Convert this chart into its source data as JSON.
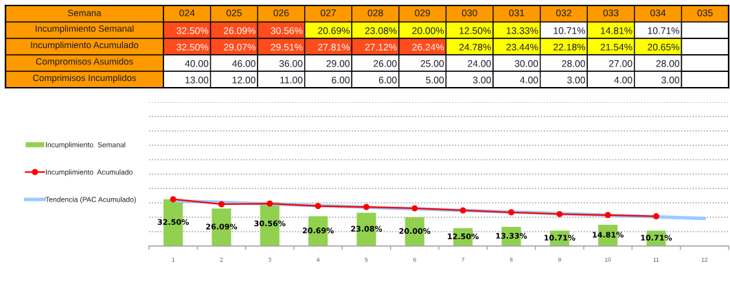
{
  "chart_data": [
    {
      "type": "heatmap",
      "xlabel": "Semana",
      "categories": [
        "024",
        "025",
        "026",
        "027",
        "028",
        "029",
        "030",
        "031",
        "032",
        "033",
        "034",
        "035"
      ],
      "y_categories": [
        "Incumplimiento Semanal",
        "Incumplimiento Acumulado",
        "Compromisos Asumidos",
        "Comprimisos Incumplidos"
      ],
      "cells": [
        [
          32.5,
          26.09,
          30.56,
          20.69,
          23.08,
          20.0,
          12.5,
          13.33,
          10.71,
          14.81,
          10.71,
          null
        ],
        [
          32.5,
          29.07,
          29.51,
          27.81,
          27.12,
          26.24,
          24.78,
          23.44,
          22.18,
          21.54,
          20.65,
          null
        ],
        [
          40,
          46,
          36,
          29,
          26,
          25,
          24,
          30,
          28,
          27,
          28,
          null
        ],
        [
          13,
          12,
          11,
          6,
          6,
          5,
          3,
          4,
          3,
          4,
          3,
          null
        ]
      ],
      "cell_labels": [
        [
          "32.50%",
          "26.09%",
          "30.56%",
          "20.69%",
          "23.08%",
          "20.00%",
          "12.50%",
          "13.33%",
          "10.71%",
          "14.81%",
          "10.71%",
          null
        ],
        [
          "32.50%",
          "29.07%",
          "29.51%",
          "27.81%",
          "27.12%",
          "26.24%",
          "24.78%",
          "23.44%",
          "22.18%",
          "21.54%",
          "20.65%",
          null
        ],
        [
          "40.00",
          "46.00",
          "36.00",
          "29.00",
          "26.00",
          "25.00",
          "24.00",
          "30.00",
          "28.00",
          "27.00",
          "28.00",
          null
        ],
        [
          "13.00",
          "12.00",
          "11.00",
          "6.00",
          "6.00",
          "5.00",
          "3.00",
          "4.00",
          "3.00",
          "4.00",
          "3.00",
          null
        ]
      ],
      "colors": [
        [
          "#ff4c1c",
          "#ff4c1c",
          "#ff4c1c",
          "#ffff00",
          "#ffff00",
          "#ffff00",
          "#ffff00",
          "#ffff00",
          "#ffffff",
          "#ffff00",
          "#ffffff",
          null
        ],
        [
          "#ff4c1c",
          "#ff4c1c",
          "#ff4c1c",
          "#ff4c1c",
          "#ff4c1c",
          "#ff4c1c",
          "#ffff00",
          "#ffff00",
          "#ffff00",
          "#ffff00",
          "#ffff00",
          null
        ],
        [
          "#ffffff",
          "#ffffff",
          "#ffffff",
          "#ffffff",
          "#ffffff",
          "#ffffff",
          "#ffffff",
          "#ffffff",
          "#ffffff",
          "#ffffff",
          "#ffffff",
          null
        ],
        [
          "#ffffff",
          "#ffffff",
          "#ffffff",
          "#ffffff",
          "#ffffff",
          "#ffffff",
          "#ffffff",
          "#ffffff",
          "#ffffff",
          "#ffffff",
          "#ffffff",
          null
        ]
      ]
    },
    {
      "type": "bar",
      "x": [
        1,
        2,
        3,
        4,
        5,
        6,
        7,
        8,
        9,
        10,
        11
      ],
      "xlim": [
        0.5,
        12.5
      ],
      "xticks": [
        {
          "value": 0.5,
          "label": null
        },
        1,
        {
          "value": 1.5,
          "label": null
        },
        2,
        {
          "value": 2.5,
          "label": null
        },
        3,
        {
          "value": 3.5,
          "label": null
        },
        4,
        {
          "value": 4.5,
          "label": null
        },
        5,
        {
          "value": 5.5,
          "label": null
        },
        6,
        {
          "value": 6.5,
          "label": null
        },
        7,
        {
          "value": 7.5,
          "label": null
        },
        8,
        {
          "value": 8.5,
          "label": null
        },
        9,
        {
          "value": 9.5,
          "label": null
        },
        10,
        {
          "value": 10.5,
          "label": null
        },
        11,
        {
          "value": 11.5,
          "label": null
        },
        12,
        {
          "value": 12.5,
          "label": null
        }
      ],
      "ylim": [
        0,
        100
      ],
      "yticks": [
        {
          "value": 0,
          "label": null
        },
        {
          "value": 10,
          "label": null
        },
        {
          "value": 20,
          "label": null
        },
        {
          "value": 30,
          "label": null
        },
        {
          "value": 40,
          "label": null
        },
        {
          "value": 50,
          "label": null
        },
        {
          "value": 60,
          "label": null
        },
        {
          "value": 70,
          "label": null
        },
        {
          "value": 80,
          "label": null
        },
        {
          "value": 90,
          "label": null
        },
        {
          "value": 100,
          "label": null
        }
      ],
      "tick_labels": "x",
      "grid": "y",
      "legend": "left",
      "series": [
        {
          "name": "Incumplimiento  Semanal",
          "type": "bar",
          "color": "#92d050",
          "values": [
            32.5,
            26.09,
            30.56,
            20.69,
            23.08,
            20.0,
            12.5,
            13.33,
            10.71,
            14.81,
            10.71
          ],
          "value_labels": [
            "32.50%",
            "26.09%",
            "30.56%",
            "20.69%",
            "23.08%",
            "20.00%",
            "12.50%",
            "13.33%",
            "10.71%",
            "14.81%",
            "10.71%"
          ]
        },
        {
          "name": "Incumplimiento  Acumulado",
          "type": "line",
          "color": "#ff0000",
          "marker": "circle",
          "values": [
            32.5,
            29.07,
            29.51,
            27.81,
            27.12,
            26.24,
            24.78,
            23.44,
            22.18,
            21.54,
            20.65
          ]
        },
        {
          "name": "Tendencia (PAC Acumulado)",
          "type": "line",
          "color": "#99ccff",
          "x": [
            1,
            12
          ],
          "values": [
            31.5,
            19.2
          ]
        }
      ]
    }
  ]
}
